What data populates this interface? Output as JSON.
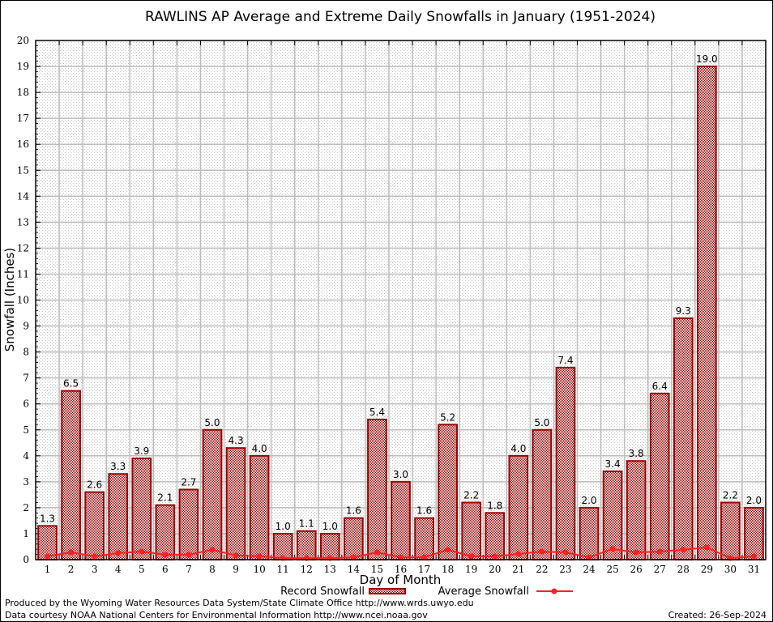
{
  "chart_data": {
    "type": "bar",
    "title": "RAWLINS AP Average and Extreme Daily Snowfalls in January (1951-2024)",
    "xlabel": "Day of Month",
    "ylabel": "Snowfall (Inches)",
    "ylim": [
      0,
      20
    ],
    "yticks": [
      "0",
      "1",
      "2",
      "3",
      "4",
      "5",
      "6",
      "7",
      "8",
      "9",
      "10",
      "11",
      "12",
      "13",
      "14",
      "15",
      "16",
      "17",
      "18",
      "19",
      "20"
    ],
    "categories": [
      "1",
      "2",
      "3",
      "4",
      "5",
      "6",
      "7",
      "8",
      "9",
      "10",
      "11",
      "12",
      "13",
      "14",
      "15",
      "16",
      "17",
      "18",
      "19",
      "20",
      "21",
      "22",
      "23",
      "24",
      "25",
      "26",
      "27",
      "28",
      "29",
      "30",
      "31"
    ],
    "grid": true,
    "legend_position": "bottom",
    "series": [
      {
        "name": "Record Snowfall",
        "type": "bar",
        "color": "#9b0000",
        "values": [
          1.3,
          6.5,
          2.6,
          3.3,
          3.9,
          2.1,
          2.7,
          5.0,
          4.3,
          4.0,
          1.0,
          1.1,
          1.0,
          1.6,
          5.4,
          3.0,
          1.6,
          5.2,
          2.2,
          1.8,
          4.0,
          5.0,
          7.4,
          2.0,
          3.4,
          3.8,
          6.4,
          9.3,
          19.0,
          2.2,
          2.0
        ],
        "labels": [
          "1.3",
          "6.5",
          "2.6",
          "3.3",
          "3.9",
          "2.1",
          "2.7",
          "5.0",
          "4.3",
          "4.0",
          "1.0",
          "1.1",
          "1.0",
          "1.6",
          "5.4",
          "3.0",
          "1.6",
          "5.2",
          "2.2",
          "1.8",
          "4.0",
          "5.0",
          "7.4",
          "2.0",
          "3.4",
          "3.8",
          "6.4",
          "9.3",
          "19.0",
          "2.2",
          "2.0"
        ]
      },
      {
        "name": "Average Snowfall",
        "type": "line",
        "color": "#ff2020",
        "values": [
          0.13,
          0.28,
          0.13,
          0.25,
          0.31,
          0.19,
          0.19,
          0.38,
          0.16,
          0.13,
          0.06,
          0.06,
          0.06,
          0.09,
          0.28,
          0.09,
          0.09,
          0.38,
          0.13,
          0.13,
          0.22,
          0.31,
          0.28,
          0.09,
          0.41,
          0.28,
          0.31,
          0.38,
          0.47,
          0.06,
          0.13
        ]
      }
    ]
  },
  "footer": {
    "produced_by": "Produced by the Wyoming Water Resources Data System/State Climate Office http://www.wrds.uwyo.edu",
    "data_courtesy": "Data courtesy NOAA National Centers for Environmental Information http://www.ncei.noaa.gov",
    "created": "Created: 26-Sep-2024"
  }
}
